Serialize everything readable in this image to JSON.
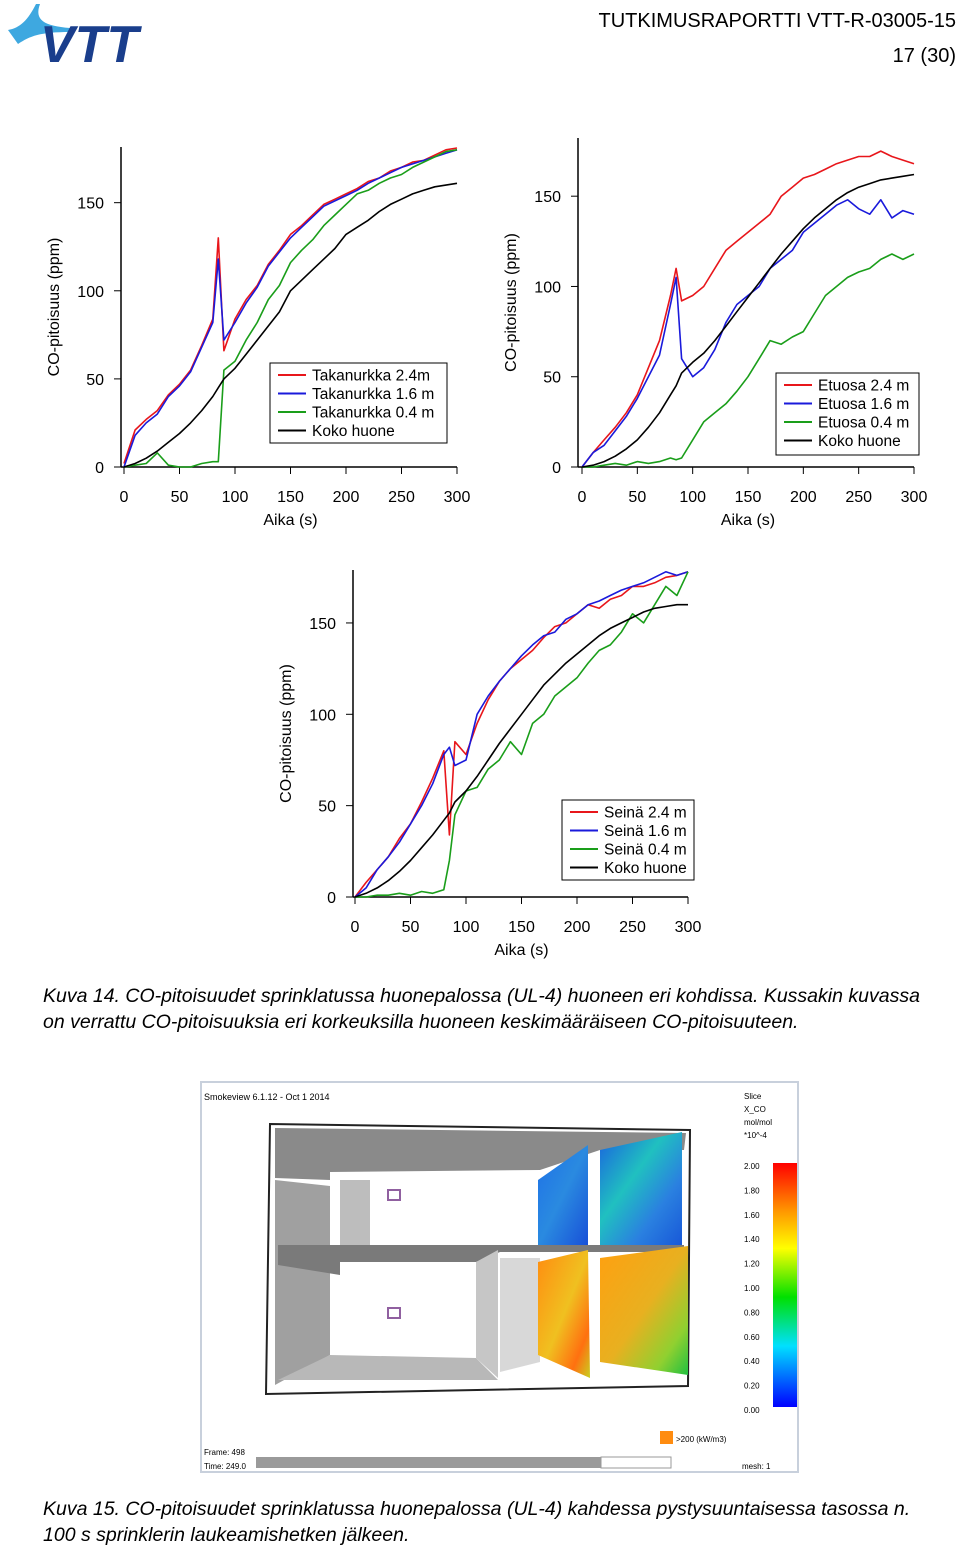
{
  "header": {
    "logo": "VTT",
    "report_id": "TUTKIMUSRAPORTTI VTT-R-03005-15",
    "page": "17 (30)"
  },
  "chart_data": [
    {
      "type": "line",
      "ylabel": "CO-pitoisuus (ppm)",
      "xlabel": "Aika (s)",
      "x": [
        0,
        10,
        20,
        30,
        40,
        50,
        60,
        70,
        80,
        85,
        90,
        100,
        110,
        120,
        130,
        140,
        150,
        160,
        170,
        180,
        190,
        200,
        210,
        220,
        230,
        240,
        250,
        260,
        270,
        280,
        290,
        300
      ],
      "xlim": [
        0,
        300
      ],
      "ylim": [
        0,
        185
      ],
      "xticks": [
        0,
        50,
        100,
        150,
        200,
        250,
        300
      ],
      "yticks": [
        0,
        50,
        100,
        150
      ],
      "legend": "lower right",
      "series": [
        {
          "name": "Takanurkka 2.4m",
          "color": "#e8161b",
          "values": [
            2,
            21,
            27,
            32,
            41,
            47,
            55,
            69,
            84,
            130,
            66,
            84,
            95,
            103,
            115,
            123,
            132,
            137,
            143,
            149,
            152,
            155,
            158,
            162,
            164,
            168,
            170,
            173,
            174,
            177,
            180,
            181
          ]
        },
        {
          "name": "Takanurkka 1.6 m",
          "color": "#1a1adb",
          "values": [
            0,
            18,
            25,
            30,
            40,
            46,
            54,
            68,
            82,
            118,
            72,
            82,
            93,
            102,
            114,
            122,
            130,
            136,
            142,
            148,
            151,
            154,
            157,
            161,
            164,
            167,
            170,
            172,
            174,
            176,
            178,
            180
          ]
        },
        {
          "name": "Takanurkka 0.4 m",
          "color": "#1a9e1a",
          "values": [
            0,
            1,
            2,
            8,
            1,
            0,
            0,
            2,
            3,
            3,
            55,
            60,
            72,
            82,
            95,
            103,
            116,
            123,
            129,
            137,
            143,
            149,
            155,
            157,
            161,
            164,
            166,
            170,
            173,
            176,
            179,
            180
          ]
        },
        {
          "name": "Koko huone",
          "color": "#000000",
          "values": [
            0,
            2,
            5,
            9,
            14,
            19,
            25,
            32,
            40,
            45,
            50,
            56,
            64,
            72,
            80,
            88,
            100,
            106,
            112,
            118,
            124,
            132,
            136,
            140,
            145,
            149,
            152,
            155,
            157,
            159,
            160,
            161
          ]
        }
      ]
    },
    {
      "type": "line",
      "ylabel": "CO-pitoisuus (ppm)",
      "xlabel": "Aika (s)",
      "x": [
        0,
        10,
        20,
        30,
        40,
        50,
        60,
        70,
        80,
        85,
        90,
        100,
        110,
        120,
        130,
        140,
        150,
        160,
        170,
        180,
        190,
        200,
        210,
        220,
        230,
        240,
        250,
        260,
        270,
        280,
        290,
        300
      ],
      "xlim": [
        0,
        300
      ],
      "ylim": [
        0,
        185
      ],
      "xticks": [
        0,
        50,
        100,
        150,
        200,
        250,
        300
      ],
      "yticks": [
        0,
        50,
        100,
        150
      ],
      "legend": "lower right",
      "series": [
        {
          "name": "Etuosa 2.4 m",
          "color": "#e8161b",
          "values": [
            0,
            8,
            15,
            22,
            30,
            40,
            55,
            70,
            95,
            110,
            92,
            95,
            100,
            110,
            120,
            125,
            130,
            135,
            140,
            150,
            155,
            160,
            162,
            165,
            168,
            170,
            172,
            172,
            175,
            172,
            170,
            168
          ]
        },
        {
          "name": "Etuosa 1.6 m",
          "color": "#1a1adb",
          "values": [
            0,
            8,
            12,
            20,
            28,
            38,
            50,
            62,
            90,
            105,
            60,
            50,
            55,
            65,
            80,
            90,
            95,
            100,
            110,
            115,
            120,
            130,
            135,
            140,
            145,
            148,
            143,
            140,
            148,
            138,
            142,
            140
          ]
        },
        {
          "name": "Etuosa 0.4 m",
          "color": "#1a9e1a",
          "values": [
            0,
            0,
            1,
            2,
            1,
            3,
            2,
            3,
            5,
            4,
            5,
            15,
            25,
            30,
            35,
            42,
            50,
            60,
            70,
            68,
            72,
            75,
            85,
            95,
            100,
            105,
            108,
            110,
            115,
            118,
            115,
            118
          ]
        },
        {
          "name": "Koko huone",
          "color": "#000000",
          "values": [
            0,
            1,
            3,
            6,
            10,
            15,
            22,
            30,
            40,
            45,
            52,
            58,
            63,
            70,
            78,
            86,
            94,
            102,
            110,
            118,
            125,
            132,
            138,
            143,
            148,
            152,
            155,
            157,
            159,
            160,
            161,
            162
          ]
        }
      ]
    },
    {
      "type": "line",
      "ylabel": "CO-pitoisuus (ppm)",
      "xlabel": "Aika (s)",
      "x": [
        0,
        10,
        20,
        30,
        40,
        50,
        60,
        70,
        80,
        85,
        90,
        100,
        110,
        120,
        130,
        140,
        150,
        160,
        170,
        180,
        190,
        200,
        210,
        220,
        230,
        240,
        250,
        260,
        270,
        280,
        290,
        300
      ],
      "xlim": [
        0,
        300
      ],
      "ylim": [
        0,
        185
      ],
      "xticks": [
        0,
        50,
        100,
        150,
        200,
        250,
        300
      ],
      "yticks": [
        0,
        50,
        100,
        150
      ],
      "legend": "lower right",
      "series": [
        {
          "name": "Seinä 2.4 m",
          "color": "#e8161b",
          "values": [
            0,
            8,
            15,
            22,
            32,
            40,
            52,
            65,
            80,
            34,
            85,
            78,
            95,
            108,
            118,
            125,
            130,
            135,
            142,
            148,
            150,
            155,
            160,
            158,
            163,
            165,
            170,
            170,
            172,
            175,
            176,
            178
          ]
        },
        {
          "name": "Seinä 1.6 m",
          "color": "#1a1adb",
          "values": [
            0,
            5,
            15,
            22,
            30,
            40,
            50,
            62,
            78,
            82,
            72,
            75,
            100,
            110,
            118,
            125,
            132,
            138,
            143,
            145,
            152,
            155,
            160,
            162,
            165,
            168,
            170,
            172,
            175,
            178,
            176,
            178
          ]
        },
        {
          "name": "Seinä 0.4 m",
          "color": "#1a9e1a",
          "values": [
            0,
            0,
            1,
            1,
            2,
            1,
            3,
            2,
            4,
            20,
            45,
            58,
            60,
            70,
            75,
            85,
            78,
            95,
            100,
            110,
            115,
            120,
            128,
            135,
            138,
            145,
            155,
            150,
            160,
            170,
            165,
            178
          ]
        },
        {
          "name": "Koko huone",
          "color": "#000000",
          "values": [
            0,
            2,
            5,
            9,
            14,
            20,
            27,
            34,
            42,
            46,
            52,
            58,
            66,
            75,
            84,
            92,
            100,
            108,
            116,
            122,
            128,
            133,
            138,
            143,
            147,
            150,
            153,
            156,
            158,
            159,
            160,
            160
          ]
        }
      ]
    }
  ],
  "caption14": "Kuva 14. CO-pitoisuudet sprinklatussa huonepalossa (UL-4) huoneen eri kohdissa. Kussakin kuvassa on verrattu CO-pitoisuuksia eri korkeuksilla huoneen keskimääräiseen CO-pitoisuuteen.",
  "screenshot": {
    "title": "Smokeview 6.1.12 - Oct  1 2014",
    "slice": [
      "Slice",
      "X_CO",
      "mol/mol",
      "*10^-4"
    ],
    "colorbar_labels": [
      "2.00",
      "1.80",
      "1.60",
      "1.40",
      "1.20",
      "1.00",
      "0.80",
      "0.60",
      "0.40",
      "0.20",
      "0.00"
    ],
    "hrr_legend": ">200 (kW/m3)",
    "frame": "Frame: 498",
    "time": "Time: 249.0",
    "mesh": "mesh: 1"
  },
  "caption15": "Kuva 15. CO-pitoisuudet sprinklatussa huonepalossa (UL-4) kahdessa pystysuuntaisessa tasossa n. 100 s sprinklerin laukeamishetken jälkeen."
}
